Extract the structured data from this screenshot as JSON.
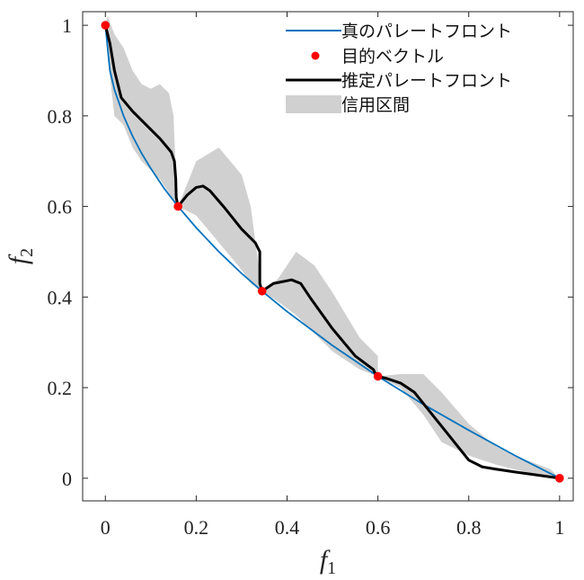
{
  "chart_data": {
    "type": "line",
    "xlabel": "f",
    "xlabel_sub": "1",
    "ylabel": "f",
    "ylabel_sub": "2",
    "xlim": [
      -0.05,
      1.03
    ],
    "ylim": [
      -0.05,
      1.03
    ],
    "xticks": [
      0,
      0.2,
      0.4,
      0.6,
      0.8,
      1
    ],
    "xtick_labels": [
      "0",
      "0.2",
      "0.4",
      "0.6",
      "0.8",
      "1"
    ],
    "yticks": [
      0,
      0.2,
      0.4,
      0.6,
      0.8,
      1
    ],
    "ytick_labels": [
      "0",
      "0.2",
      "0.4",
      "0.6",
      "0.8",
      "1"
    ],
    "grid": false,
    "legend_position": "top-right",
    "series": [
      {
        "name": "真のパレートフロント",
        "kind": "line",
        "color": "#0072BD",
        "x": [
          0,
          0.01,
          0.02,
          0.04,
          0.06,
          0.08,
          0.1,
          0.13,
          0.16,
          0.2,
          0.25,
          0.3,
          0.345,
          0.4,
          0.5,
          0.6,
          0.7,
          0.8,
          0.9,
          1
        ],
        "y": [
          1,
          0.9,
          0.858,
          0.8,
          0.755,
          0.717,
          0.684,
          0.639,
          0.6,
          0.553,
          0.5,
          0.452,
          0.413,
          0.368,
          0.293,
          0.225,
          0.163,
          0.106,
          0.051,
          0
        ]
      },
      {
        "name": "目的ベクトル",
        "kind": "points",
        "color": "#FF0000",
        "x": [
          0,
          0.16,
          0.345,
          0.6,
          1
        ],
        "y": [
          1,
          0.6,
          0.413,
          0.225,
          0
        ]
      },
      {
        "name": "推定パレートフロント",
        "kind": "line",
        "color": "#000000",
        "x": [
          0,
          0.01,
          0.02,
          0.035,
          0.06,
          0.12,
          0.145,
          0.152,
          0.155,
          0.156,
          0.16,
          0.18,
          0.2,
          0.215,
          0.23,
          0.26,
          0.3,
          0.33,
          0.34,
          0.34,
          0.345,
          0.37,
          0.41,
          0.43,
          0.45,
          0.5,
          0.55,
          0.59,
          0.6,
          0.6,
          0.62,
          0.65,
          0.68,
          0.72,
          0.76,
          0.8,
          0.83,
          0.86,
          0.9,
          0.95,
          1
        ],
        "y": [
          1,
          0.96,
          0.9,
          0.84,
          0.81,
          0.75,
          0.72,
          0.7,
          0.66,
          0.62,
          0.6,
          0.625,
          0.642,
          0.645,
          0.635,
          0.6,
          0.55,
          0.52,
          0.5,
          0.43,
          0.413,
          0.43,
          0.438,
          0.43,
          0.4,
          0.33,
          0.27,
          0.24,
          0.22,
          0.225,
          0.22,
          0.21,
          0.19,
          0.14,
          0.09,
          0.04,
          0.025,
          0.02,
          0.014,
          0.007,
          0
        ]
      },
      {
        "name": "信用区間",
        "kind": "band",
        "color": "#D0D0D0",
        "x": [
          0,
          0.005,
          0.02,
          0.04,
          0.06,
          0.08,
          0.1,
          0.12,
          0.14,
          0.15,
          0.155,
          0.16,
          0.16,
          0.2,
          0.25,
          0.3,
          0.32,
          0.34,
          0.345,
          0.345,
          0.38,
          0.42,
          0.46,
          0.5,
          0.56,
          0.6,
          0.6,
          0.65,
          0.7,
          0.74,
          0.8,
          0.86,
          0.9,
          0.94,
          0.98,
          1
        ],
        "lower": [
          1,
          0.93,
          0.8,
          0.78,
          0.73,
          0.7,
          0.68,
          0.66,
          0.63,
          0.61,
          0.6,
          0.6,
          0.6,
          0.58,
          0.52,
          0.46,
          0.43,
          0.415,
          0.413,
          0.413,
          0.39,
          0.36,
          0.32,
          0.28,
          0.24,
          0.225,
          0.225,
          0.2,
          0.14,
          0.08,
          0.05,
          0.03,
          0.02,
          0.01,
          0.003,
          0
        ],
        "upper": [
          1,
          1.02,
          0.98,
          0.95,
          0.9,
          0.87,
          0.86,
          0.87,
          0.85,
          0.8,
          0.68,
          0.6,
          0.6,
          0.7,
          0.73,
          0.67,
          0.6,
          0.45,
          0.413,
          0.413,
          0.44,
          0.5,
          0.47,
          0.41,
          0.31,
          0.27,
          0.225,
          0.23,
          0.23,
          0.19,
          0.12,
          0.07,
          0.05,
          0.035,
          0.02,
          0
        ]
      }
    ]
  }
}
